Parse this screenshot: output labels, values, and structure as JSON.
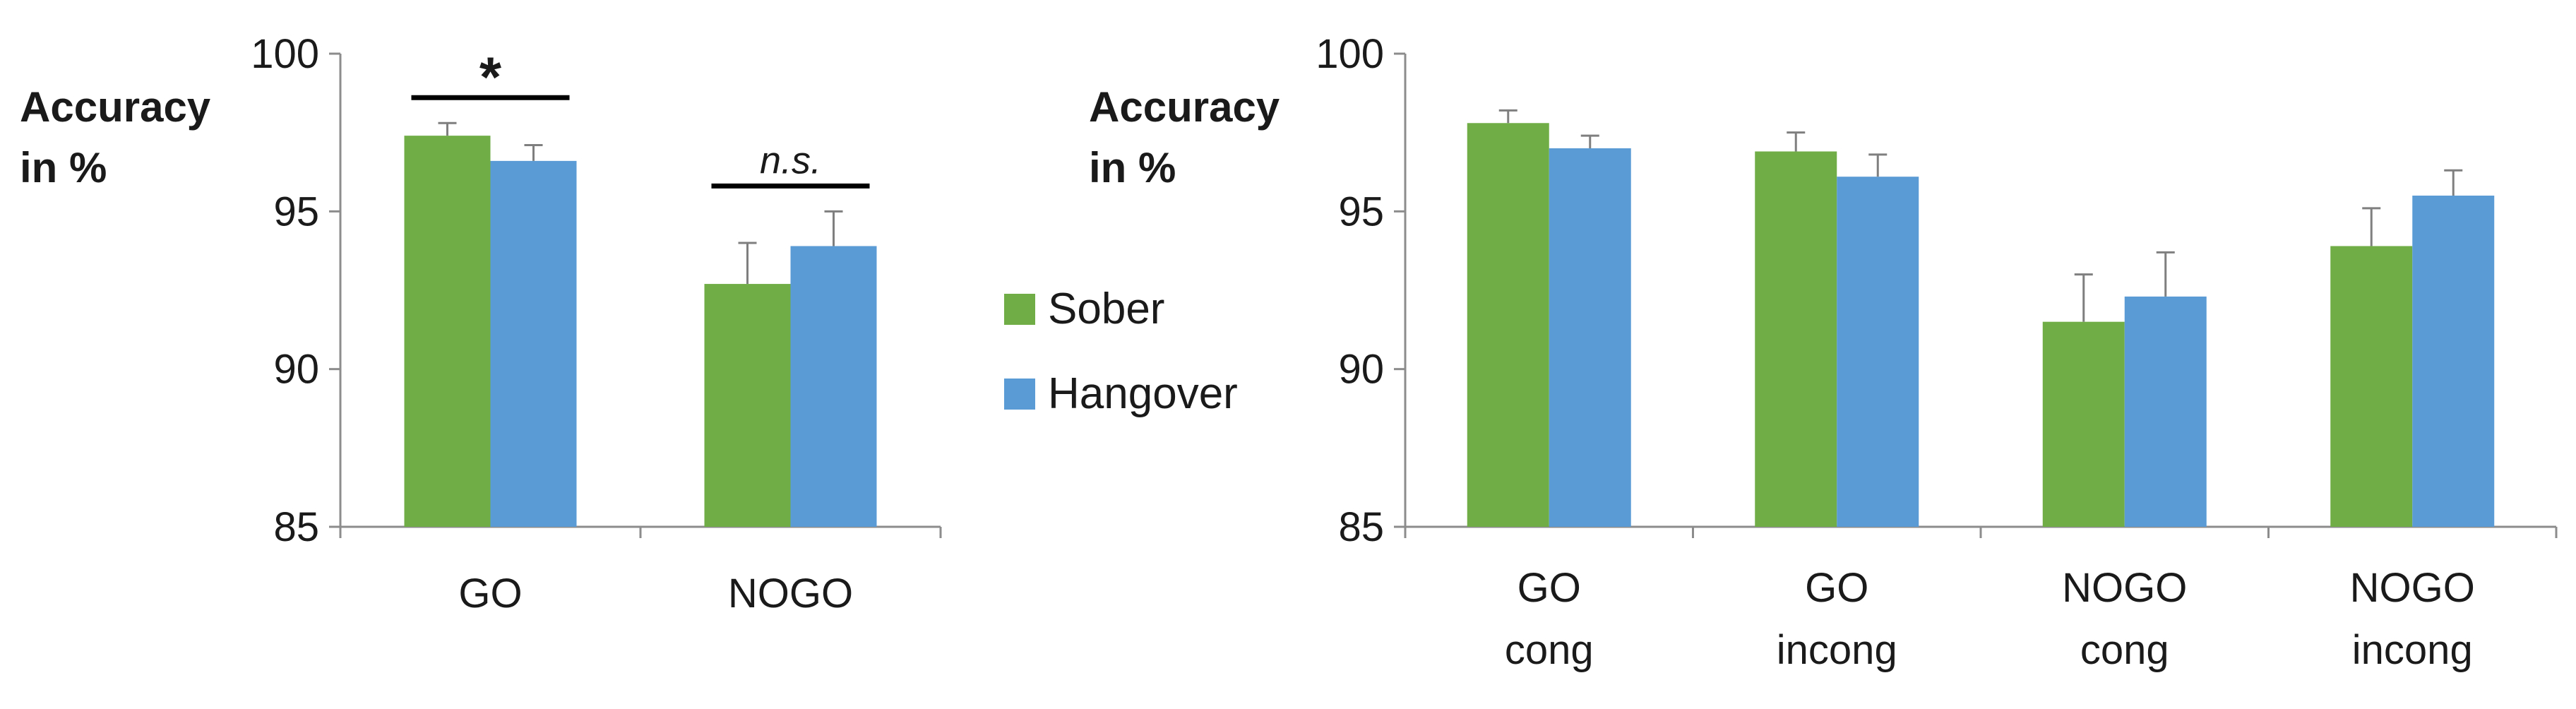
{
  "chart_data": [
    {
      "type": "bar",
      "ylabel_lines": [
        "Accuracy",
        "in %"
      ],
      "ylim": [
        85,
        100
      ],
      "yticks": [
        85,
        90,
        95,
        100
      ],
      "categories": [
        [
          "GO"
        ],
        [
          "NOGO"
        ]
      ],
      "series": [
        {
          "name": "Sober",
          "values": [
            97.4,
            92.7
          ],
          "errors": [
            0.4,
            1.3
          ]
        },
        {
          "name": "Hangover",
          "values": [
            96.6,
            93.9
          ],
          "errors": [
            0.5,
            1.1
          ]
        }
      ],
      "annotations": [
        {
          "category_index": 0,
          "text": "*"
        },
        {
          "category_index": 1,
          "text": "n.s."
        }
      ],
      "grid": false
    },
    {
      "type": "bar",
      "ylabel_lines": [
        "Accuracy",
        "in %"
      ],
      "ylim": [
        85,
        100
      ],
      "yticks": [
        85,
        90,
        95,
        100
      ],
      "categories": [
        [
          "GO",
          "cong"
        ],
        [
          "GO",
          "incong"
        ],
        [
          "NOGO",
          "cong"
        ],
        [
          "NOGO",
          "incong"
        ]
      ],
      "series": [
        {
          "name": "Sober",
          "values": [
            97.8,
            96.9,
            91.5,
            93.9
          ],
          "errors": [
            0.4,
            0.6,
            1.5,
            1.2
          ]
        },
        {
          "name": "Hangover",
          "values": [
            97.0,
            96.1,
            92.3,
            95.5
          ],
          "errors": [
            0.4,
            0.7,
            1.4,
            0.8
          ]
        }
      ],
      "grid": false
    }
  ],
  "legend": {
    "placement": "center",
    "items": [
      {
        "label": "Sober",
        "color": "#70ad47"
      },
      {
        "label": "Hangover",
        "color": "#5b9bd5"
      }
    ]
  },
  "colors": {
    "sober": "#70ad47",
    "hangover": "#5b9bd5",
    "axis": "#8c8c8c",
    "errorbar": "#7f7f7f"
  }
}
